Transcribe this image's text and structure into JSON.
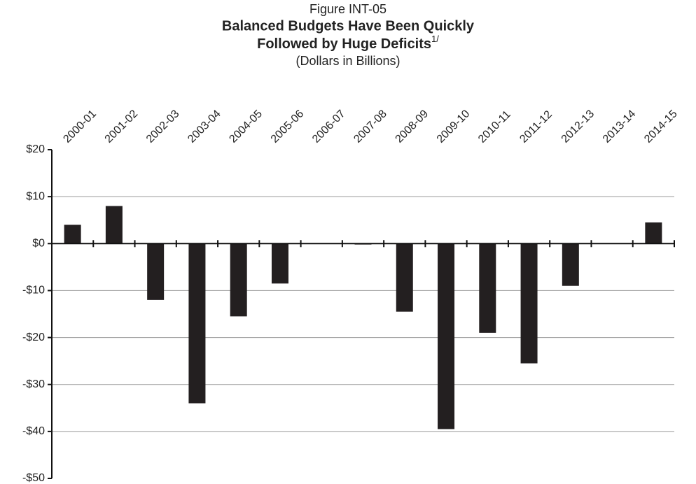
{
  "chart_data": {
    "type": "bar",
    "figure_label": "Figure INT-05",
    "title": [
      "Balanced Budgets Have Been Quickly",
      "Followed by Huge Deficits"
    ],
    "title_note": "1/",
    "subtitle": "(Dollars in Billions)",
    "categories": [
      "2000-01",
      "2001-02",
      "2002-03",
      "2003-04",
      "2004-05",
      "2005-06",
      "2006-07",
      "2007-08",
      "2008-09",
      "2009-10",
      "2010-11",
      "2011-12",
      "2012-13",
      "2013-14",
      "2014-15"
    ],
    "values": [
      4,
      8,
      -12,
      -34,
      -15.5,
      -8.5,
      0,
      -0.2,
      -14.5,
      -39.5,
      -19,
      -25.5,
      -9,
      0,
      4.5
    ],
    "color": "#231f20",
    "ylim": [
      -50,
      20
    ],
    "yticks": [
      {
        "value": 20,
        "label": "$20"
      },
      {
        "value": 10,
        "label": "$10"
      },
      {
        "value": 0,
        "label": "$0"
      },
      {
        "value": -10,
        "label": "-$10"
      },
      {
        "value": -20,
        "label": "-$20"
      },
      {
        "value": -30,
        "label": "-$30"
      },
      {
        "value": -40,
        "label": "-$40"
      },
      {
        "value": -50,
        "label": "-$50"
      }
    ],
    "grid": true
  }
}
